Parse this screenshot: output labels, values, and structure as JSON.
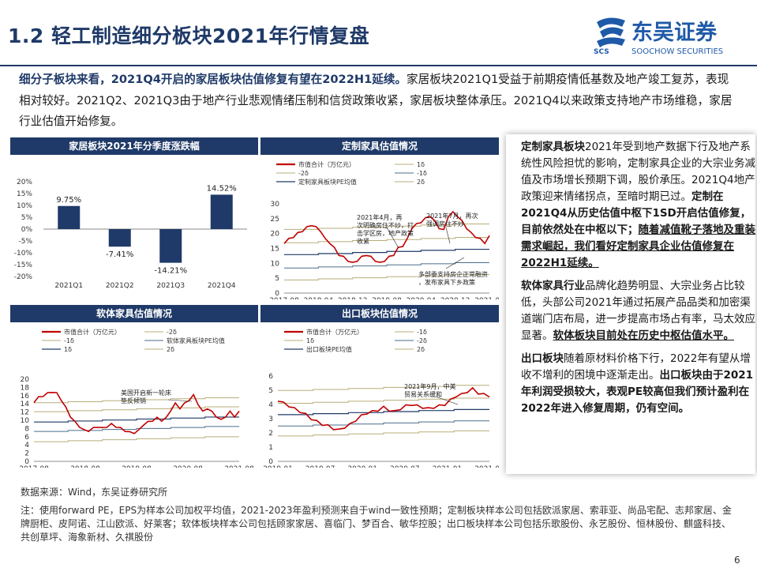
{
  "header": {
    "title": "1.2 轻工制造细分板块2021年行情复盘",
    "brand_cn": "东吴证券",
    "brand_en": "SOOCHOW SECURITIES",
    "brand_abbr": "SCS"
  },
  "intro": {
    "lead": "细分子板块来看，2021Q4开启的家居板块估值修复有望在2022H1延续。",
    "body": "家居板块2021Q1受益于前期疫情低基数及地产竣工复苏，表现相对较好。2021Q2、2021Q3由于地产行业悲观情绪压制和信贷政策收紧，家居板块整体承压。2021Q4以来政策支持地产市场维稳，家居行业估值开始修复。"
  },
  "charts": {
    "bar": {
      "title": "家居板块2021年分季度涨跌幅",
      "chart_data": {
        "type": "bar",
        "categories": [
          "2021Q1",
          "2021Q2",
          "2021Q3",
          "2021Q4"
        ],
        "values": [
          9.75,
          -7.41,
          -14.21,
          14.52
        ],
        "value_labels": [
          "9.75%",
          "-7.41%",
          "-14.21%",
          "14.52%"
        ],
        "yticks": [
          "20%",
          "15%",
          "10%",
          "5%",
          "0%",
          "-5%",
          "-10%",
          "-15%",
          "-20%"
        ],
        "ylim": [
          -20,
          20
        ],
        "color": "#1f3a68"
      }
    },
    "custom": {
      "title": "定制家具估值情况",
      "legend": [
        "市值合计（万亿元）",
        "1δ",
        "-2δ",
        "-1δ",
        "定制家具板块PE均值",
        "2δ"
      ],
      "xticks": [
        "2017-08",
        "2018-04",
        "2018-12",
        "2019-08",
        "2020-04",
        "2020-12",
        "2021-08"
      ],
      "yticks": [
        "0",
        "5",
        "10",
        "15",
        "20",
        "25",
        "30"
      ],
      "annotations": [
        "2021年4月，再次明确房住不炒，打击学区房，地产政策收紧",
        "2021年7月，再次强调房住不炒",
        "多部委支持房企正常融资，发布家具下乡政策"
      ],
      "chart_data": {
        "type": "line",
        "ylim": [
          0,
          30
        ],
        "levels": {
          "mean": 14,
          "plus1": 18,
          "minus1": 9.5,
          "plus2": 22.5,
          "minus2": 5.5
        },
        "series": [
          {
            "name": "市值合计（万亿元）",
            "values": [
              17,
              18,
              19,
              20,
              21,
              22,
              23,
              22,
              21,
              18,
              17,
              15,
              13,
              12,
              11,
              10,
              11,
              12,
              13,
              12,
              11,
              10,
              11,
              12,
              13,
              15,
              16,
              18,
              22,
              23,
              24,
              25,
              26,
              24,
              22,
              21,
              26,
              27,
              26,
              24,
              22,
              20,
              19,
              18,
              17,
              19
            ]
          }
        ]
      }
    },
    "soft": {
      "title": "软体家具估值情况",
      "legend": [
        "市值合计（万亿元）",
        "-2δ",
        "-1δ",
        "软体家具板块PE均值",
        "1δ",
        "2δ"
      ],
      "xticks": [
        "2017-08",
        "2018-08",
        "2019-08",
        "2020-08",
        "2021-08"
      ],
      "yticks": [
        "0",
        "2",
        "4",
        "6",
        "8",
        "10",
        "12",
        "14",
        "16",
        "18",
        "20"
      ],
      "annotations": [
        "美国开启新一轮床垫反倾销"
      ],
      "chart_data": {
        "type": "line",
        "ylim": [
          0,
          20
        ],
        "levels": {
          "mean": 10.3,
          "plus1": 12.8,
          "minus1": 8,
          "plus2": 15,
          "minus2": 5.5
        },
        "series": [
          {
            "name": "市值合计（万亿元）",
            "values": [
              14.5,
              15.5,
              16,
              16.5,
              17,
              16.5,
              15,
              13,
              11,
              9.5,
              8.5,
              7.5,
              7.5,
              8,
              8.5,
              8,
              8.5,
              9,
              8.5,
              8,
              7.5,
              7,
              7,
              7.5,
              9,
              9.5,
              10,
              10.5,
              10,
              10.5,
              12.5,
              14,
              13,
              14,
              15,
              16,
              14,
              12,
              13,
              12,
              11,
              10,
              11,
              12,
              11,
              12
            ]
          }
        ]
      }
    },
    "export": {
      "title": "出口板块估值情况",
      "legend": [
        "市值合计（万亿元）",
        "-1δ",
        "1δ",
        "-2δ",
        "出口板块PE均值",
        "2δ"
      ],
      "xticks": [
        "2019-01",
        "2019-07",
        "2020-01",
        "2020-07",
        "2021-01",
        "2021-07"
      ],
      "yticks": [
        "0",
        "1",
        "2",
        "3",
        "4",
        "5",
        "6"
      ],
      "annotations": [
        "2021年9月，中美贸易关系缓和"
      ],
      "chart_data": {
        "type": "line",
        "ylim": [
          0,
          6
        ],
        "levels": {
          "mean": 3.5,
          "plus1": 4.3,
          "minus1": 2.7,
          "plus2": 5.2,
          "minus2": 2.0
        },
        "series": [
          {
            "name": "市值合计（万亿元）",
            "values": [
              4.3,
              4.1,
              3.9,
              3.7,
              3.5,
              3.3,
              3.0,
              2.8,
              2.6,
              2.5,
              2.3,
              2.2,
              2.4,
              2.6,
              2.9,
              3.2,
              3.4,
              3.5,
              3.6,
              3.8,
              3.6,
              3.5,
              3.7,
              3.9,
              4.0,
              3.9,
              3.8,
              3.7,
              3.8,
              3.9,
              4.0,
              4.3,
              4.6,
              4.7,
              4.9,
              5.1,
              4.8,
              4.7,
              4.6
            ]
          }
        ]
      }
    }
  },
  "right": {
    "p1": [
      {
        "t": "定制家具板块",
        "s": "b"
      },
      {
        "t": "2021年受到地产数据下行及地产系统性风险担忧的影响，定制家具企业的大宗业务减值及市场增长预期下调，股价承压。2021Q4地产政策迎来情绪拐点，至暗时期已过。",
        "s": "n"
      },
      {
        "t": "定制在2021Q4从历史估值中枢下1SD开启估值修复，目前依然处在中枢以下；",
        "s": "b"
      },
      {
        "t": "随着减值靴子落地及重装需求崛起，我们看好定制家具企业估值修复在2022H1延续。",
        "s": "u"
      }
    ],
    "p2": [
      {
        "t": "软体家具行业",
        "s": "b"
      },
      {
        "t": "品牌化趋势明显、大宗业务占比较低，头部公司2021年通过拓展产品品类和加密渠道端门店布局，进一步提高市场占有率，马太效应显著。",
        "s": "n"
      },
      {
        "t": "软体板块目前处在历史中枢估值水平。",
        "s": "u"
      }
    ],
    "p3": [
      {
        "t": "出口板块",
        "s": "b"
      },
      {
        "t": "随着原材料价格下行，2022年有望从增收不增利的困境中逐渐走出。",
        "s": "n"
      },
      {
        "t": "出口板块由于2021年利润受损较大，表观PE较高但我们预计盈利在2022年进入修复周期，仍有空间。",
        "s": "b"
      }
    ]
  },
  "footer": {
    "source": "数据来源：Wind，东吴证券研究所",
    "note": "注：使用forward PE，EPS为样本公司加权平均值，2021-2023年盈利预测来自于wind一致性预期；定制板块样本公司包括欧派家居、索菲亚、尚品宅配、志邦家居、金牌厨柜、皮阿诺、江山欧派、好莱客；软体板块样本公司包括顾家家居、喜临门、梦百合、敏华控股；出口板块样本公司包括乐歌股份、永艺股份、恒林股份、麒盛科技、共创草坪、海象新材、久祺股份",
    "page": "6"
  }
}
